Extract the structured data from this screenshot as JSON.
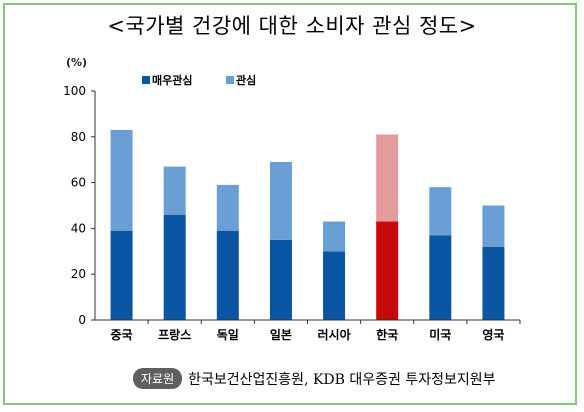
{
  "title": "<국가별 건강에 대한 소비자 관심 정도>",
  "unit_label": "(%)",
  "footer": {
    "badge": "자료원",
    "text": "한국보건산업진흥원, KDB 대우증권 투자정보지원부"
  },
  "colors": {
    "dark": "#0a56a5",
    "light": "#6a9fd6",
    "highlight_dark": "#c8090c",
    "highlight_light": "#e59b9b",
    "frame": "#7fc97a"
  },
  "chart_data": {
    "type": "bar",
    "stacked": true,
    "categories": [
      "중국",
      "프랑스",
      "독일",
      "일본",
      "러시아",
      "한국",
      "미국",
      "영국"
    ],
    "series": [
      {
        "name": "매우관심",
        "values": [
          39,
          46,
          39,
          35,
          30,
          43,
          37,
          32
        ]
      },
      {
        "name": "관심",
        "values": [
          44,
          21,
          20,
          34,
          13,
          38,
          21,
          18
        ]
      }
    ],
    "highlight_category": "한국",
    "ylim": [
      0,
      100
    ],
    "yticks": [
      0,
      20,
      40,
      60,
      80,
      100
    ],
    "legend_position": "top-left",
    "grid": false
  }
}
